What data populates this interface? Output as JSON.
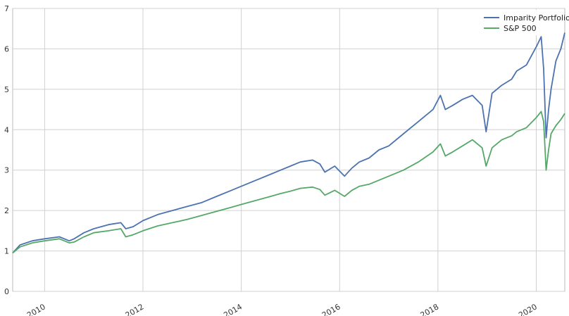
{
  "chart_data": {
    "type": "line",
    "title": "",
    "xlabel": "",
    "ylabel": "",
    "xlim": [
      2009.35,
      2020.58
    ],
    "ylim": [
      0,
      7
    ],
    "yticks": [
      0,
      1,
      2,
      3,
      4,
      5,
      6,
      7
    ],
    "yticklabels": [
      "0",
      "1",
      "2",
      "3",
      "4",
      "5",
      "6",
      "7"
    ],
    "xticks": [
      2010,
      2012,
      2014,
      2016,
      2018,
      2020
    ],
    "xticklabels": [
      "2010",
      "2012",
      "2014",
      "2016",
      "2018",
      "2020"
    ],
    "grid": true,
    "legend_position": "top-right",
    "series": [
      {
        "name": "Imparity Portfolio",
        "color": "#4c72b0",
        "x": [
          2009.35,
          2009.5,
          2009.75,
          2010.0,
          2010.3,
          2010.5,
          2010.6,
          2010.8,
          2011.0,
          2011.3,
          2011.55,
          2011.65,
          2011.8,
          2012.0,
          2012.3,
          2012.6,
          2012.9,
          2013.2,
          2013.5,
          2013.8,
          2014.0,
          2014.3,
          2014.6,
          2014.8,
          2015.0,
          2015.2,
          2015.45,
          2015.6,
          2015.7,
          2015.9,
          2016.1,
          2016.25,
          2016.4,
          2016.6,
          2016.8,
          2017.0,
          2017.3,
          2017.6,
          2017.9,
          2018.05,
          2018.15,
          2018.3,
          2018.5,
          2018.7,
          2018.9,
          2018.98,
          2019.1,
          2019.3,
          2019.5,
          2019.6,
          2019.8,
          2020.0,
          2020.1,
          2020.15,
          2020.2,
          2020.25,
          2020.3,
          2020.4,
          2020.5,
          2020.58
        ],
        "y": [
          0.95,
          1.15,
          1.25,
          1.3,
          1.35,
          1.25,
          1.3,
          1.45,
          1.55,
          1.65,
          1.7,
          1.55,
          1.6,
          1.75,
          1.9,
          2.0,
          2.1,
          2.2,
          2.35,
          2.5,
          2.6,
          2.75,
          2.9,
          3.0,
          3.1,
          3.2,
          3.25,
          3.15,
          2.95,
          3.1,
          2.85,
          3.05,
          3.2,
          3.3,
          3.5,
          3.6,
          3.9,
          4.2,
          4.5,
          4.85,
          4.5,
          4.6,
          4.75,
          4.85,
          4.6,
          3.95,
          4.9,
          5.1,
          5.25,
          5.45,
          5.6,
          6.05,
          6.3,
          5.5,
          3.8,
          4.5,
          5.0,
          5.7,
          6.0,
          6.4
        ]
      },
      {
        "name": "S&P 500",
        "color": "#55a868",
        "x": [
          2009.35,
          2009.5,
          2009.75,
          2010.0,
          2010.3,
          2010.5,
          2010.6,
          2010.8,
          2011.0,
          2011.3,
          2011.55,
          2011.65,
          2011.8,
          2012.0,
          2012.3,
          2012.6,
          2012.9,
          2013.2,
          2013.5,
          2013.8,
          2014.0,
          2014.3,
          2014.6,
          2014.8,
          2015.0,
          2015.2,
          2015.45,
          2015.6,
          2015.7,
          2015.9,
          2016.1,
          2016.25,
          2016.4,
          2016.6,
          2016.8,
          2017.0,
          2017.3,
          2017.6,
          2017.9,
          2018.05,
          2018.15,
          2018.3,
          2018.5,
          2018.7,
          2018.9,
          2018.98,
          2019.1,
          2019.3,
          2019.5,
          2019.6,
          2019.8,
          2020.0,
          2020.1,
          2020.15,
          2020.2,
          2020.25,
          2020.3,
          2020.4,
          2020.5,
          2020.58
        ],
        "y": [
          0.95,
          1.1,
          1.2,
          1.25,
          1.3,
          1.2,
          1.22,
          1.35,
          1.45,
          1.5,
          1.55,
          1.35,
          1.4,
          1.5,
          1.62,
          1.7,
          1.78,
          1.88,
          1.98,
          2.08,
          2.15,
          2.25,
          2.35,
          2.42,
          2.48,
          2.55,
          2.58,
          2.52,
          2.38,
          2.5,
          2.35,
          2.5,
          2.6,
          2.65,
          2.75,
          2.85,
          3.0,
          3.2,
          3.45,
          3.65,
          3.35,
          3.45,
          3.6,
          3.75,
          3.55,
          3.1,
          3.55,
          3.75,
          3.85,
          3.95,
          4.05,
          4.3,
          4.45,
          4.2,
          3.0,
          3.5,
          3.9,
          4.1,
          4.25,
          4.4
        ]
      }
    ]
  }
}
